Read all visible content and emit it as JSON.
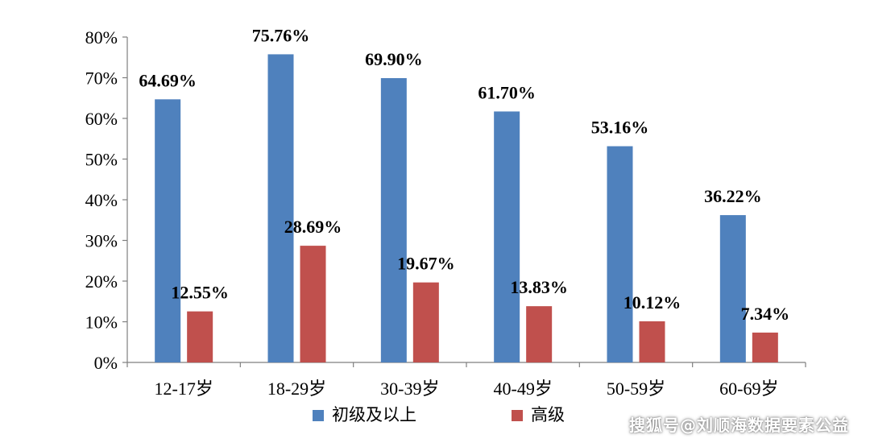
{
  "chart_data": {
    "type": "bar",
    "categories": [
      "12-17岁",
      "18-29岁",
      "30-39岁",
      "40-49岁",
      "50-59岁",
      "60-69岁"
    ],
    "series": [
      {
        "name": "初级及以上",
        "color": "#4f81bd",
        "values": [
          64.69,
          75.76,
          69.9,
          61.7,
          53.16,
          36.22
        ],
        "labels": [
          "64.69%",
          "75.76%",
          "69.90%",
          "61.70%",
          "53.16%",
          "36.22%"
        ]
      },
      {
        "name": "高级",
        "color": "#c0504d",
        "values": [
          12.55,
          28.69,
          19.67,
          13.83,
          10.12,
          7.34
        ],
        "labels": [
          "12.55%",
          "28.69%",
          "19.67%",
          "13.83%",
          "10.12%",
          "7.34%"
        ]
      }
    ],
    "ylim": [
      0,
      80
    ],
    "yticks": [
      "0%",
      "10%",
      "20%",
      "30%",
      "40%",
      "50%",
      "60%",
      "70%",
      "80%"
    ],
    "ytick_values": [
      0,
      10,
      20,
      30,
      40,
      50,
      60,
      70,
      80
    ],
    "legend_position": "bottom",
    "grid": false
  },
  "watermark": "搜狐号@刘顺海数据要素公益"
}
